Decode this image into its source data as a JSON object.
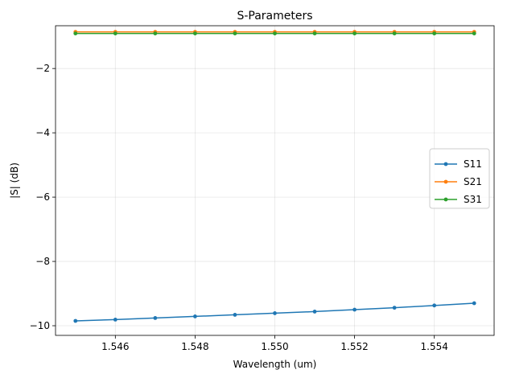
{
  "chart_data": {
    "type": "line",
    "title": "S-Parameters",
    "xlabel": "Wavelength (um)",
    "ylabel": "|S| (dB)",
    "x": [
      1.545,
      1.546,
      1.547,
      1.548,
      1.549,
      1.55,
      1.551,
      1.552,
      1.553,
      1.554,
      1.555
    ],
    "xlim": [
      1.5445,
      1.5555
    ],
    "ylim": [
      -10.3,
      -0.67
    ],
    "xticks": [
      1.546,
      1.548,
      1.55,
      1.552,
      1.554
    ],
    "xtick_labels": [
      "1.546",
      "1.548",
      "1.550",
      "1.552",
      "1.554"
    ],
    "yticks": [
      -10,
      -8,
      -6,
      -4,
      -2
    ],
    "ytick_labels": [
      "−10",
      "−8",
      "−6",
      "−4",
      "−2"
    ],
    "grid": true,
    "legend_position": "center-right",
    "series": [
      {
        "name": "S11",
        "color": "#1f77b4",
        "marker": "circle",
        "values": [
          -9.85,
          -9.81,
          -9.76,
          -9.71,
          -9.66,
          -9.61,
          -9.56,
          -9.5,
          -9.44,
          -9.37,
          -9.3
        ]
      },
      {
        "name": "S21",
        "color": "#ff7f0e",
        "marker": "circle",
        "values": [
          -0.86,
          -0.86,
          -0.86,
          -0.86,
          -0.86,
          -0.86,
          -0.86,
          -0.86,
          -0.86,
          -0.86,
          -0.86
        ]
      },
      {
        "name": "S31",
        "color": "#2ca02c",
        "marker": "circle",
        "values": [
          -0.91,
          -0.91,
          -0.91,
          -0.91,
          -0.91,
          -0.91,
          -0.91,
          -0.91,
          -0.91,
          -0.91,
          -0.91
        ]
      }
    ]
  }
}
